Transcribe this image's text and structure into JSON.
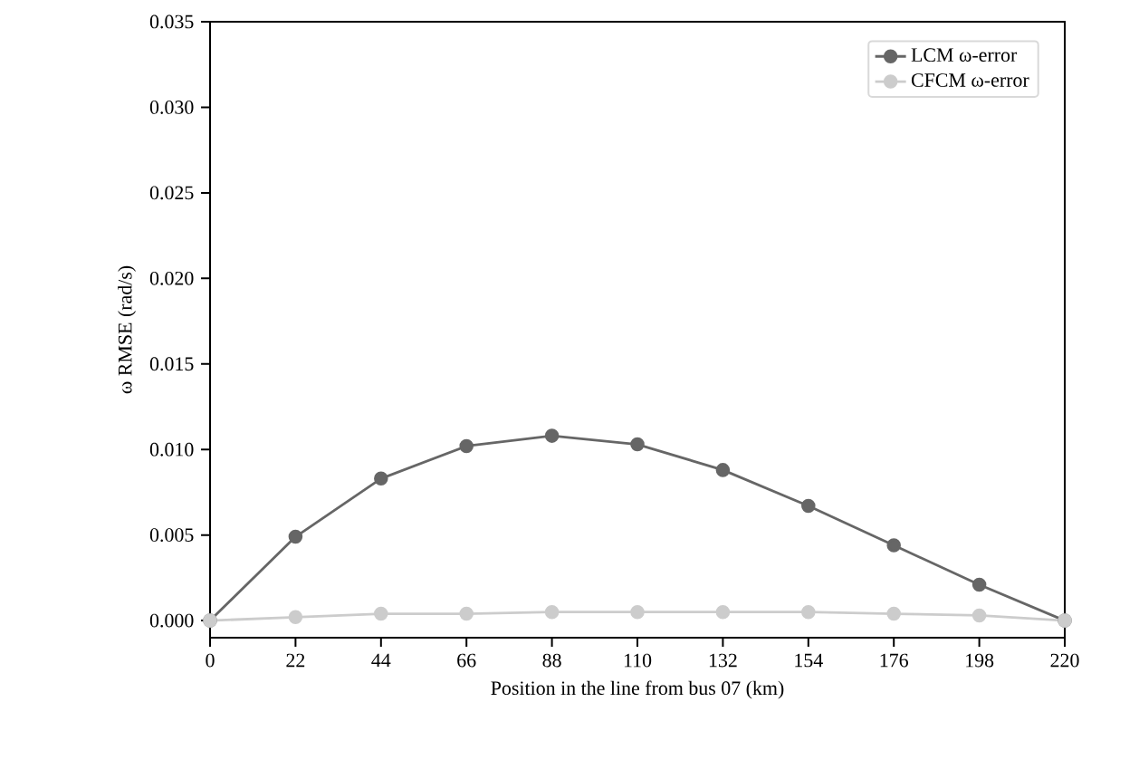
{
  "chart_data": {
    "type": "line",
    "xlabel": "Position in the line from bus 07 (km)",
    "ylabel": "ω RMSE (rad/s)",
    "x": [
      0,
      22,
      44,
      66,
      88,
      110,
      132,
      154,
      176,
      198,
      220
    ],
    "series": [
      {
        "name": "LCM ω-error",
        "color": "#666666",
        "values": [
          0,
          0.0049,
          0.0083,
          0.0102,
          0.0108,
          0.0103,
          0.0088,
          0.0067,
          0.0044,
          0.0021,
          0
        ]
      },
      {
        "name": "CFCM ω-error",
        "color": "#cccccc",
        "values": [
          0,
          0.0002,
          0.0004,
          0.0004,
          0.0005,
          0.0005,
          0.0005,
          0.0005,
          0.0004,
          0.0003,
          0
        ]
      }
    ],
    "xlim": [
      0,
      220
    ],
    "ylim": [
      -0.001,
      0.035
    ],
    "xticks": [
      0,
      22,
      44,
      66,
      88,
      110,
      132,
      154,
      176,
      198,
      220
    ],
    "yticks": [
      {
        "value": 0,
        "label": "0.000"
      },
      {
        "value": 0.005,
        "label": "0.005"
      },
      {
        "value": 0.01,
        "label": "0.010"
      },
      {
        "value": 0.015,
        "label": "0.015"
      },
      {
        "value": 0.02,
        "label": "0.020"
      },
      {
        "value": 0.025,
        "label": "0.025"
      },
      {
        "value": 0.03,
        "label": "0.030"
      },
      {
        "value": 0.035,
        "label": "0.035"
      }
    ],
    "legend": "top right",
    "marker": "circle",
    "line_style": "solid",
    "grid": false
  }
}
